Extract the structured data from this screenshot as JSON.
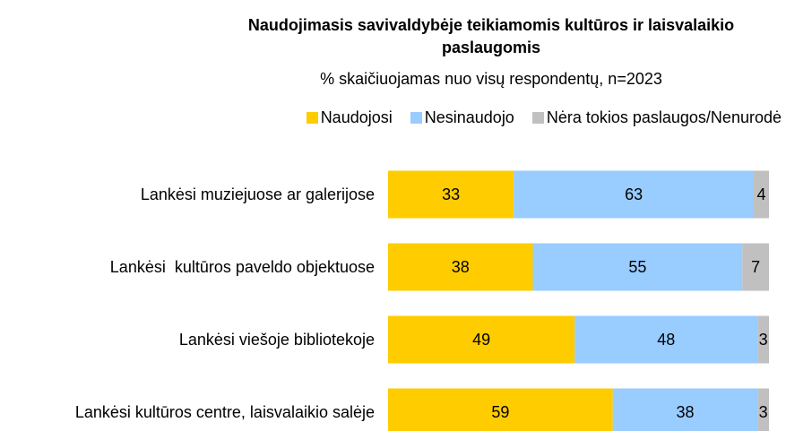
{
  "chart_data": {
    "type": "stacked-bar-horizontal",
    "title": "Naudojimasis savivaldybėje teikiamomis kultūros ir laisvalaikio paslaugomis",
    "subtitle": "% skaičiuojamas nuo visų respondentų, n=2023",
    "categories": [
      "Lankėsi muziejuose ar galerijose",
      "Lankėsi  kultūros paveldo objektuose",
      "Lankėsi viešoje bibliotekoje",
      "Lankėsi kultūros centre, laisvalaikio salėje"
    ],
    "series": [
      {
        "name": "Naudojosi",
        "color": "#ffcc00",
        "values": [
          33,
          38,
          49,
          59
        ]
      },
      {
        "name": "Nesinaudojo",
        "color": "#99ccff",
        "values": [
          63,
          55,
          48,
          38
        ]
      },
      {
        "name": "Nėra tokios paslaugos/Nenurodė",
        "color": "#c0c0c0",
        "values": [
          4,
          7,
          3,
          3
        ]
      }
    ],
    "xlim": [
      0,
      100
    ],
    "legend": "top"
  }
}
